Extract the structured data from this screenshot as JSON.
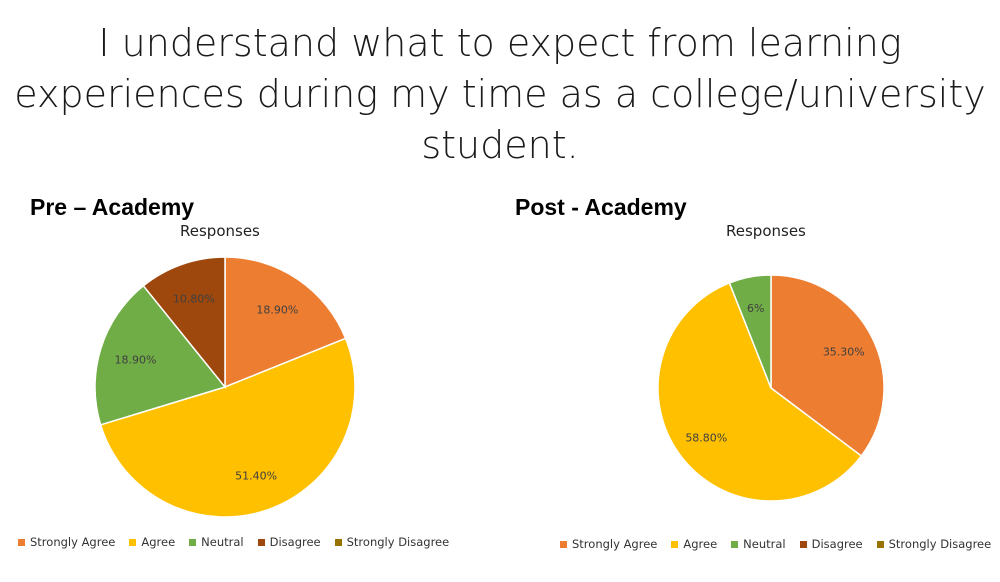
{
  "slide": {
    "title": "I understand what to expect from learning experiences during my time as a college/university student."
  },
  "colors": {
    "Strongly Agree": "#ED7D31",
    "Agree": "#FFC000",
    "Neutral": "#70AD47",
    "Disagree": "#9E480E",
    "Strongly Disagree": "#997300"
  },
  "chart_data": [
    {
      "type": "pie",
      "heading": "Pre – Academy",
      "title": "Responses",
      "categories": [
        "Strongly Agree",
        "Agree",
        "Neutral",
        "Disagree",
        "Strongly Disagree"
      ],
      "values": [
        18.9,
        51.4,
        18.9,
        10.8,
        0
      ],
      "labels": [
        "18.90%",
        "51.40%",
        "18.90%",
        "10.80%",
        ""
      ],
      "legend": "bottom"
    },
    {
      "type": "pie",
      "heading": "Post - Academy",
      "title": "Responses",
      "categories": [
        "Strongly Agree",
        "Agree",
        "Neutral",
        "Disagree",
        "Strongly Disagree"
      ],
      "values": [
        35.3,
        58.8,
        6,
        0,
        0
      ],
      "labels": [
        "35.30%",
        "58.80%",
        "6%",
        "",
        ""
      ],
      "legend": "bottom"
    }
  ]
}
